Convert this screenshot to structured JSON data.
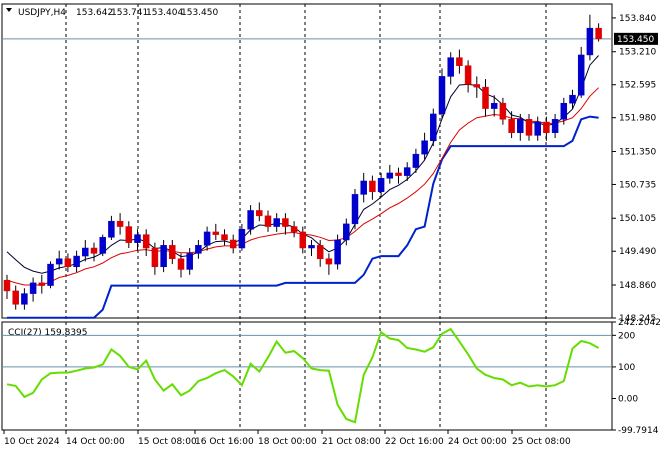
{
  "chart_data": [
    {
      "type": "candlestick",
      "title": "USDJPY,H4",
      "ohlc_readout": [
        "153.642",
        "153.741",
        "153.404",
        "153.450"
      ],
      "current_price": "153.450",
      "y_range": [
        148.245,
        154.1
      ],
      "y_ticks": [
        "153.840",
        "153.210",
        "152.595",
        "151.980",
        "151.350",
        "150.735",
        "150.105",
        "149.490",
        "148.860",
        "148.245"
      ],
      "x_ticks": [
        "10 Oct 2024",
        "14 Oct 00:00",
        "15 Oct 08:00",
        "16 Oct 16:00",
        "18 Oct 00:00",
        "21 Oct 08:00",
        "22 Oct 16:00",
        "24 Oct 00:00",
        "25 Oct 08:00"
      ],
      "colors": {
        "up": "#0000cc",
        "down": "#e00000",
        "fast_ma": "#000033",
        "slow_ma": "#dd0000",
        "trail": "#0022cc"
      },
      "candles": [
        [
          148.95,
          148.75,
          149.05,
          148.6
        ],
        [
          148.75,
          148.5,
          148.85,
          148.4
        ],
        [
          148.5,
          148.7,
          148.8,
          148.4
        ],
        [
          148.7,
          148.9,
          149.0,
          148.55
        ],
        [
          148.9,
          148.85,
          149.05,
          148.7
        ],
        [
          148.85,
          149.25,
          149.3,
          148.8
        ],
        [
          149.25,
          149.35,
          149.5,
          149.15
        ],
        [
          149.35,
          149.2,
          149.45,
          149.1
        ],
        [
          149.2,
          149.4,
          149.5,
          149.1
        ],
        [
          149.4,
          149.55,
          149.7,
          149.3
        ],
        [
          149.55,
          149.45,
          149.65,
          149.3
        ],
        [
          149.45,
          149.75,
          149.8,
          149.4
        ],
        [
          149.75,
          150.05,
          150.15,
          149.7
        ],
        [
          150.05,
          149.95,
          150.2,
          149.8
        ],
        [
          149.95,
          149.65,
          150.05,
          149.55
        ],
        [
          149.65,
          149.8,
          149.9,
          149.5
        ],
        [
          149.8,
          149.55,
          149.9,
          149.4
        ],
        [
          149.55,
          149.2,
          149.65,
          149.05
        ],
        [
          149.2,
          149.6,
          149.7,
          149.1
        ],
        [
          149.6,
          149.35,
          149.7,
          149.25
        ],
        [
          149.35,
          149.15,
          149.45,
          149.0
        ],
        [
          149.15,
          149.45,
          149.55,
          149.05
        ],
        [
          149.45,
          149.6,
          149.7,
          149.35
        ],
        [
          149.6,
          149.85,
          149.95,
          149.5
        ],
        [
          149.85,
          149.8,
          150.0,
          149.7
        ],
        [
          149.8,
          149.7,
          149.9,
          149.6
        ],
        [
          149.7,
          149.55,
          149.8,
          149.45
        ],
        [
          149.55,
          149.9,
          150.0,
          149.5
        ],
        [
          149.9,
          150.25,
          150.35,
          149.8
        ],
        [
          150.25,
          150.15,
          150.4,
          150.05
        ],
        [
          150.15,
          149.95,
          150.25,
          149.85
        ],
        [
          149.95,
          150.1,
          150.2,
          149.85
        ],
        [
          150.1,
          149.95,
          150.2,
          149.8
        ],
        [
          149.95,
          149.85,
          150.05,
          149.75
        ],
        [
          149.85,
          149.55,
          149.95,
          149.45
        ],
        [
          149.55,
          149.6,
          149.7,
          149.4
        ],
        [
          149.6,
          149.35,
          149.7,
          149.2
        ],
        [
          149.35,
          149.25,
          149.45,
          149.05
        ],
        [
          149.25,
          149.7,
          149.8,
          149.15
        ],
        [
          149.7,
          150.0,
          150.1,
          149.6
        ],
        [
          150.0,
          150.55,
          150.65,
          149.9
        ],
        [
          150.55,
          150.8,
          150.95,
          150.4
        ],
        [
          150.8,
          150.6,
          150.9,
          150.45
        ],
        [
          150.6,
          150.85,
          150.95,
          150.5
        ],
        [
          150.85,
          150.95,
          151.1,
          150.75
        ],
        [
          150.95,
          150.9,
          151.05,
          150.75
        ],
        [
          150.9,
          151.05,
          151.15,
          150.8
        ],
        [
          151.05,
          151.3,
          151.4,
          150.95
        ],
        [
          151.3,
          151.55,
          151.7,
          151.2
        ],
        [
          151.55,
          152.05,
          152.15,
          151.45
        ],
        [
          152.05,
          152.75,
          152.9,
          151.95
        ],
        [
          152.75,
          153.1,
          153.2,
          152.6
        ],
        [
          153.1,
          152.95,
          153.25,
          152.8
        ],
        [
          152.95,
          152.6,
          153.05,
          152.45
        ],
        [
          152.6,
          152.55,
          152.75,
          152.35
        ],
        [
          152.55,
          152.15,
          152.7,
          152.0
        ],
        [
          152.15,
          152.25,
          152.4,
          152.0
        ],
        [
          152.25,
          151.95,
          152.35,
          151.85
        ],
        [
          151.95,
          151.7,
          152.1,
          151.6
        ],
        [
          151.7,
          151.95,
          152.05,
          151.55
        ],
        [
          151.95,
          151.65,
          152.05,
          151.55
        ],
        [
          151.65,
          151.9,
          152.0,
          151.55
        ],
        [
          151.9,
          151.7,
          152.0,
          151.55
        ],
        [
          151.7,
          151.95,
          152.05,
          151.6
        ],
        [
          151.95,
          152.25,
          152.35,
          151.85
        ],
        [
          152.25,
          152.4,
          152.5,
          152.15
        ],
        [
          152.4,
          153.15,
          153.3,
          152.35
        ],
        [
          153.15,
          153.65,
          153.9,
          153.05
        ],
        [
          153.65,
          153.45,
          153.74,
          153.4
        ]
      ],
      "fast_ma": [
        149.48,
        149.33,
        149.19,
        149.12,
        149.08,
        149.12,
        149.18,
        149.21,
        149.26,
        149.34,
        149.38,
        149.46,
        149.6,
        149.7,
        149.69,
        149.72,
        149.67,
        149.54,
        149.56,
        149.49,
        149.39,
        149.41,
        149.47,
        149.6,
        149.67,
        149.68,
        149.64,
        149.72,
        149.89,
        149.98,
        149.97,
        150.01,
        149.99,
        149.94,
        149.81,
        149.74,
        149.6,
        149.48,
        149.55,
        149.71,
        149.99,
        150.27,
        150.37,
        150.5,
        150.64,
        150.72,
        150.83,
        150.99,
        151.19,
        151.51,
        151.96,
        152.37,
        152.59,
        152.6,
        152.58,
        152.43,
        152.36,
        152.22,
        152.03,
        151.99,
        151.88,
        151.89,
        151.83,
        151.87,
        151.99,
        152.14,
        152.52,
        152.96,
        153.14
      ],
      "slow_ma": [
        148.95,
        148.9,
        148.86,
        148.86,
        148.86,
        148.92,
        149.0,
        149.04,
        149.09,
        149.16,
        149.2,
        149.27,
        149.37,
        149.44,
        149.47,
        149.51,
        149.52,
        149.49,
        149.5,
        149.49,
        149.46,
        149.46,
        149.48,
        149.53,
        149.57,
        149.59,
        149.59,
        149.62,
        149.7,
        149.75,
        149.78,
        149.81,
        149.83,
        149.84,
        149.81,
        149.79,
        149.75,
        149.69,
        149.7,
        149.74,
        149.86,
        150.0,
        150.09,
        150.19,
        150.3,
        150.38,
        150.48,
        150.6,
        150.74,
        150.94,
        151.22,
        151.52,
        151.75,
        151.88,
        151.98,
        152.01,
        152.04,
        152.02,
        151.97,
        151.96,
        151.91,
        151.91,
        151.87,
        151.88,
        151.92,
        151.98,
        152.15,
        152.38,
        152.54
      ],
      "trail_stop": [
        148.25,
        148.25,
        148.25,
        148.25,
        148.25,
        148.25,
        148.25,
        148.25,
        148.25,
        148.25,
        148.25,
        148.4,
        148.85,
        148.85,
        148.85,
        148.85,
        148.85,
        148.85,
        148.85,
        148.85,
        148.85,
        148.85,
        148.85,
        148.85,
        148.85,
        148.85,
        148.85,
        148.85,
        148.85,
        148.85,
        148.85,
        148.85,
        148.9,
        148.9,
        148.9,
        148.9,
        148.9,
        148.9,
        148.9,
        148.9,
        148.9,
        149.05,
        149.35,
        149.4,
        149.4,
        149.4,
        149.6,
        149.9,
        149.95,
        150.75,
        151.2,
        151.45,
        151.45,
        151.45,
        151.45,
        151.45,
        151.45,
        151.45,
        151.45,
        151.45,
        151.45,
        151.45,
        151.45,
        151.45,
        151.45,
        151.55,
        151.95,
        152.0,
        151.98
      ]
    },
    {
      "type": "line",
      "title": "CCI(27) 159.8395",
      "y_range": [
        -99.7914,
        242.2042
      ],
      "y_ticks": [
        "242.2042",
        "200",
        "100",
        "0.00",
        "-99.7914"
      ],
      "series": [
        {
          "color": "#66dd00",
          "values": [
            45,
            40,
            5,
            18,
            60,
            80,
            82,
            82,
            88,
            95,
            98,
            108,
            155,
            135,
            100,
            92,
            120,
            60,
            25,
            45,
            10,
            25,
            55,
            65,
            80,
            90,
            70,
            42,
            110,
            85,
            130,
            180,
            145,
            150,
            128,
            95,
            90,
            88,
            -20,
            -65,
            -75,
            75,
            130,
            210,
            190,
            185,
            160,
            155,
            148,
            162,
            205,
            220,
            180,
            140,
            95,
            75,
            65,
            60,
            42,
            50,
            38,
            42,
            38,
            42,
            55,
            158,
            182,
            175,
            160
          ]
        }
      ]
    }
  ]
}
